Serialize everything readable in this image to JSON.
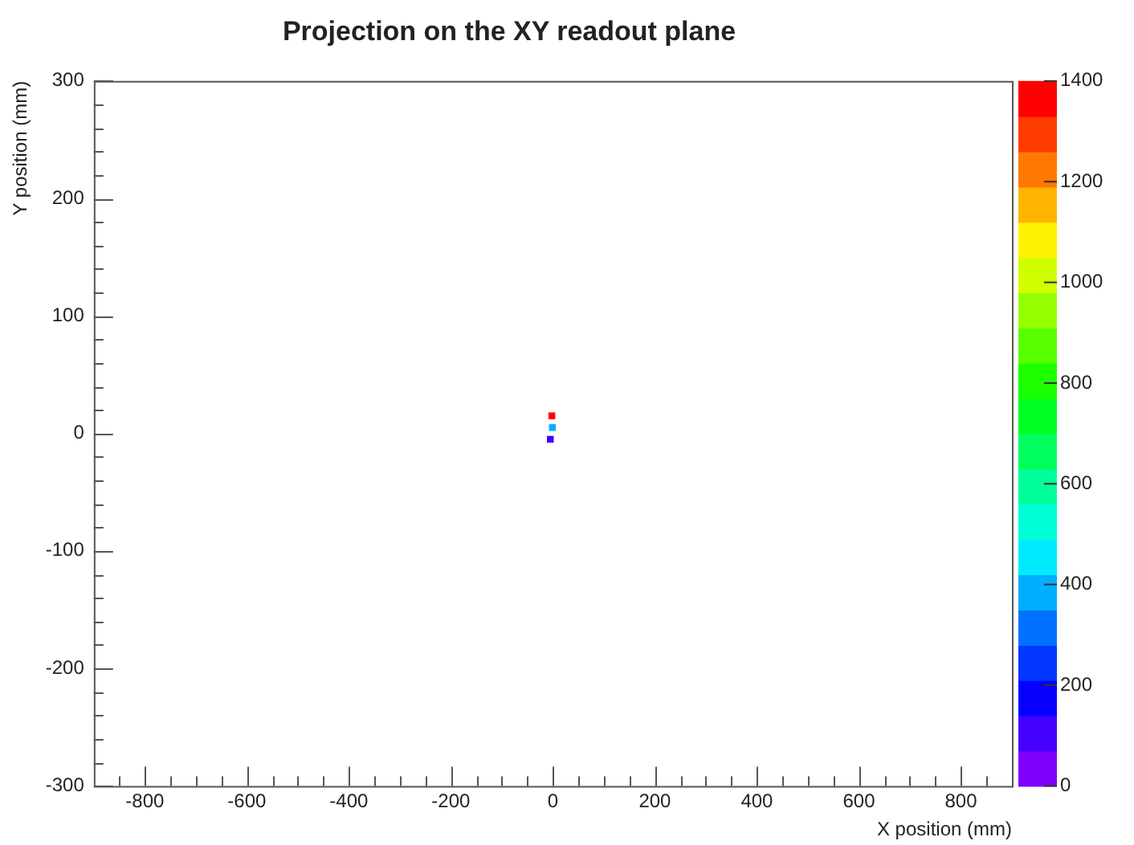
{
  "chart_data": {
    "type": "scatter",
    "title": "Projection on the XY readout plane",
    "xlabel": "X position (mm)",
    "ylabel": "Y position (mm)",
    "x": [
      -2,
      -1,
      -5
    ],
    "values": [
      15,
      5,
      -5
    ],
    "cvalues": [
      1400,
      350,
      100
    ],
    "marker": "square",
    "grid": false,
    "legend": false,
    "xlim": [
      -900,
      900
    ],
    "ylim": [
      -300,
      300
    ],
    "xticks": [
      {
        "value": -850,
        "label": null
      },
      -800,
      {
        "value": -750,
        "label": null
      },
      {
        "value": -700,
        "label": null
      },
      {
        "value": -650,
        "label": null
      },
      -600,
      {
        "value": -550,
        "label": null
      },
      {
        "value": -500,
        "label": null
      },
      {
        "value": -450,
        "label": null
      },
      -400,
      {
        "value": -350,
        "label": null
      },
      {
        "value": -300,
        "label": null
      },
      {
        "value": -250,
        "label": null
      },
      -200,
      {
        "value": -150,
        "label": null
      },
      {
        "value": -100,
        "label": null
      },
      {
        "value": -50,
        "label": null
      },
      0,
      {
        "value": 50,
        "label": null
      },
      {
        "value": 100,
        "label": null
      },
      {
        "value": 150,
        "label": null
      },
      200,
      {
        "value": 250,
        "label": null
      },
      {
        "value": 300,
        "label": null
      },
      {
        "value": 350,
        "label": null
      },
      400,
      {
        "value": 450,
        "label": null
      },
      {
        "value": 500,
        "label": null
      },
      {
        "value": 550,
        "label": null
      },
      600,
      {
        "value": 650,
        "label": null
      },
      {
        "value": 700,
        "label": null
      },
      {
        "value": 750,
        "label": null
      },
      800,
      {
        "value": 850,
        "label": null
      }
    ],
    "yticks": [
      -300,
      {
        "value": -280,
        "label": null
      },
      {
        "value": -260,
        "label": null
      },
      {
        "value": -240,
        "label": null
      },
      {
        "value": -220,
        "label": null
      },
      -200,
      {
        "value": -180,
        "label": null
      },
      {
        "value": -160,
        "label": null
      },
      {
        "value": -140,
        "label": null
      },
      {
        "value": -120,
        "label": null
      },
      -100,
      {
        "value": -80,
        "label": null
      },
      {
        "value": -60,
        "label": null
      },
      {
        "value": -40,
        "label": null
      },
      {
        "value": -20,
        "label": null
      },
      0,
      {
        "value": 20,
        "label": null
      },
      {
        "value": 40,
        "label": null
      },
      {
        "value": 60,
        "label": null
      },
      {
        "value": 80,
        "label": null
      },
      100,
      {
        "value": 120,
        "label": null
      },
      {
        "value": 140,
        "label": null
      },
      {
        "value": 160,
        "label": null
      },
      {
        "value": 180,
        "label": null
      },
      200,
      {
        "value": 220,
        "label": null
      },
      {
        "value": 240,
        "label": null
      },
      {
        "value": 260,
        "label": null
      },
      {
        "value": 280,
        "label": null
      },
      300
    ],
    "clim": [
      0,
      1400
    ],
    "cticks": [
      0,
      200,
      400,
      600,
      800,
      1000,
      1200,
      1400
    ]
  }
}
